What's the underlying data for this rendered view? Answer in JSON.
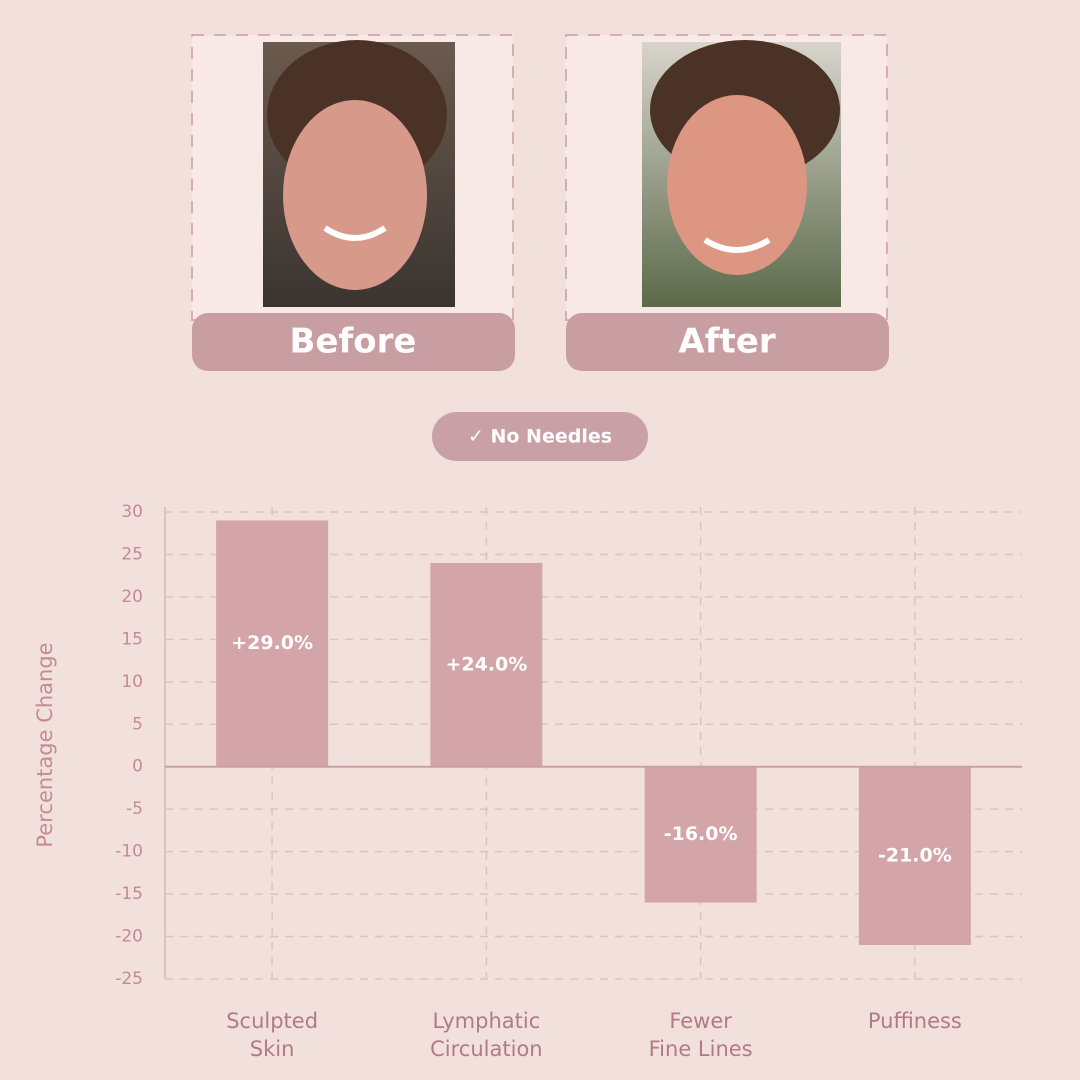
{
  "header": {
    "before_label": "Before",
    "after_label": "After",
    "badge": "✓ No Needles"
  },
  "chart_data": {
    "type": "bar",
    "y_label": "Percentage Change",
    "categories": [
      "Sculpted\nSkin",
      "Lymphatic\nCirculation",
      "Fewer\nFine Lines",
      "Puffiness"
    ],
    "values": [
      29,
      24,
      -16,
      -21
    ],
    "value_labels": [
      "+29.0%",
      "+24.0%",
      "-16.0%",
      "-21.0%"
    ],
    "color": "#d4a5a8",
    "ylim": [
      -25,
      30
    ],
    "yticks": [
      30,
      25,
      20,
      15,
      10,
      5,
      0,
      -5,
      -10,
      -15,
      -20,
      -25
    ],
    "grid": true
  }
}
